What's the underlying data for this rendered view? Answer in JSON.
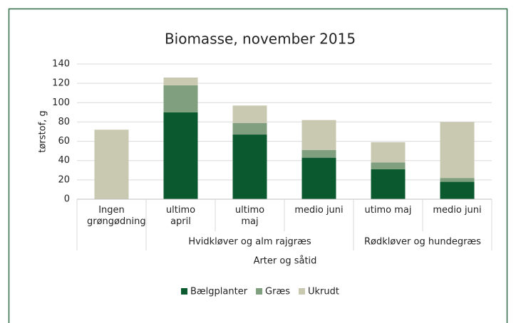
{
  "chart_data": {
    "type": "stacked_bar",
    "title": "Biomasse, november 2015",
    "y_label": "tørstof, g",
    "x_label": "Arter og såtid",
    "categories": [
      "Ingen grøngødning",
      "ultimo april",
      "ultimo maj",
      "medio juni",
      "utimo maj",
      "medio juni"
    ],
    "category_groups": [
      null,
      "Hvidkløver og alm rajgræs",
      "Hvidkløver og alm rajgræs",
      "Hvidkløver og alm rajgræs",
      "Rødkløver og hundegræs",
      "Rødkløver og hundegræs"
    ],
    "series": [
      {
        "name": "Bælgplanter",
        "color": "#0b5a2f",
        "values": [
          0,
          90,
          67,
          43,
          31,
          18
        ]
      },
      {
        "name": "Græs",
        "color": "#7f9f7f",
        "values": [
          0,
          28,
          12,
          8,
          7,
          4
        ]
      },
      {
        "name": "Ukrudt",
        "color": "#c9c8b0",
        "values": [
          72,
          8,
          18,
          31,
          21,
          58
        ]
      }
    ],
    "ylim": [
      0,
      140
    ],
    "yticks": [
      0,
      20,
      40,
      60,
      80,
      100,
      120,
      140
    ],
    "grid": true,
    "legend": "bottom"
  }
}
